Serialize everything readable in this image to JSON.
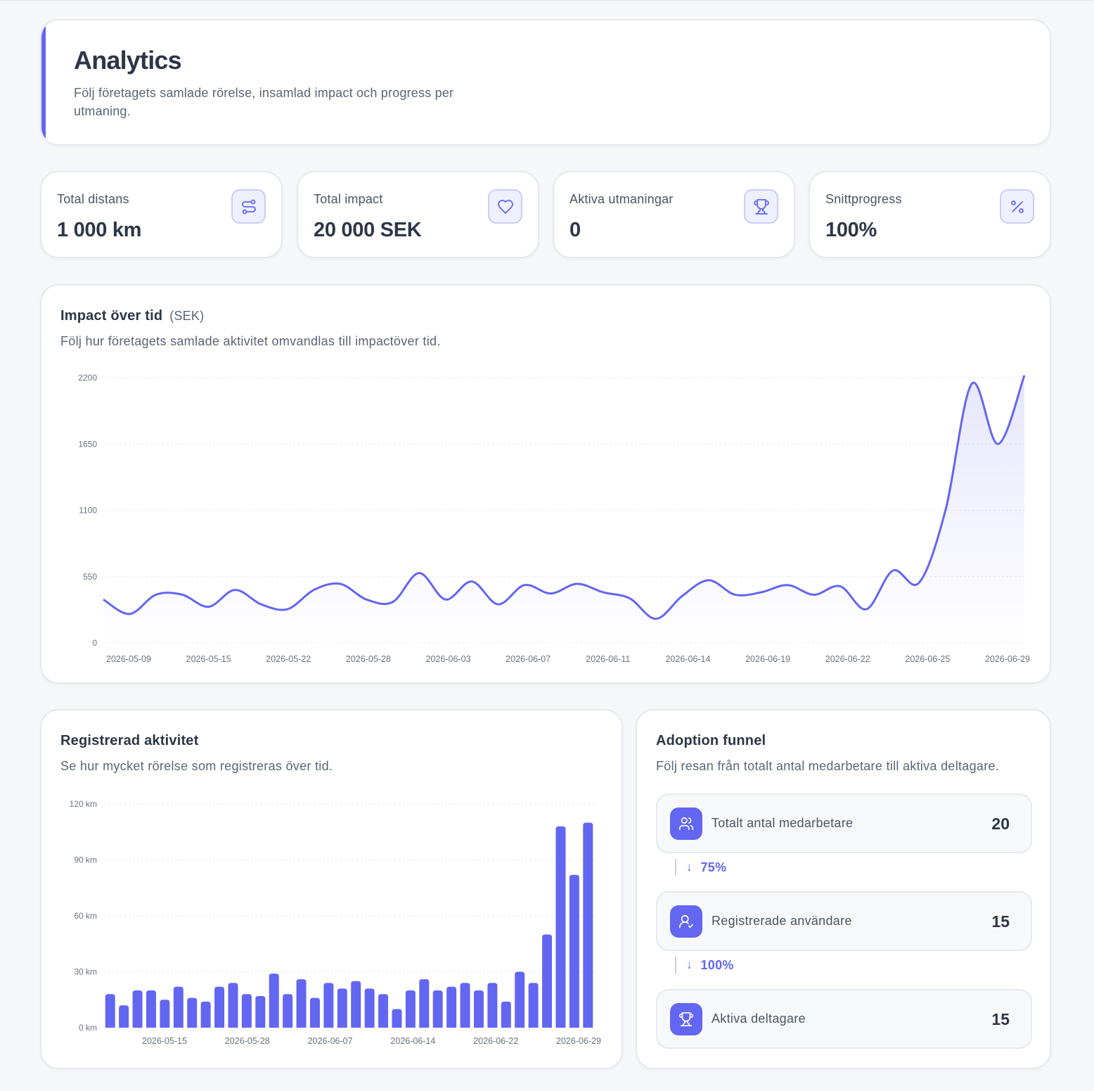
{
  "header": {
    "title": "Analytics",
    "subtitle": "Följ företagets samlade rörelse, insamlad impact och progress per utmaning."
  },
  "stats": [
    {
      "label": "Total distans",
      "value": "1 000 km",
      "icon": "route-icon"
    },
    {
      "label": "Total impact",
      "value": "20 000 SEK",
      "icon": "heart-icon"
    },
    {
      "label": "Aktiva utmaningar",
      "value": "0",
      "icon": "trophy-icon"
    },
    {
      "label": "Snittprogress",
      "value": "100%",
      "icon": "percent-icon"
    }
  ],
  "colors": {
    "accent": "#6366f1",
    "accent_light": "#eef0ff",
    "grid": "#e5e7eb",
    "text": "#2d3648"
  },
  "impact": {
    "title": "Impact över tid",
    "unit": "(SEK)",
    "subtitle": "Följ hur företagets samlade aktivitet omvandlas till impactöver tid."
  },
  "activity": {
    "title": "Registrerad aktivitet",
    "subtitle": "Se hur mycket rörelse som registreras över tid."
  },
  "funnel": {
    "title": "Adoption funnel",
    "subtitle": "Följ resan från totalt antal medarbetare till aktiva deltagare.",
    "steps": [
      {
        "label": "Totalt antal medarbetare",
        "value": "20",
        "icon": "users-icon"
      },
      {
        "label": "Registrerade användare",
        "value": "15",
        "icon": "user-check-icon"
      },
      {
        "label": "Aktiva deltagare",
        "value": "15",
        "icon": "trophy-icon"
      }
    ],
    "conversions": [
      "75%",
      "100%"
    ]
  },
  "chart_data": [
    {
      "type": "area",
      "title": "Impact över tid",
      "ylim": [
        0,
        2200
      ],
      "y_ticks": [
        "0",
        "550",
        "1100",
        "1650",
        "2200"
      ],
      "x_tick_labels": [
        "2026-05-09",
        "2026-05-15",
        "2026-05-22",
        "2026-05-28",
        "2026-06-03",
        "2026-06-07",
        "2026-06-11",
        "2026-06-14",
        "2026-06-19",
        "2026-06-22",
        "2026-06-25",
        "2026-06-29"
      ],
      "grid": true,
      "series": [
        {
          "values": [
            360,
            240,
            400,
            400,
            300,
            440,
            320,
            280,
            440,
            490,
            360,
            340,
            580,
            360,
            510,
            320,
            480,
            410,
            490,
            420,
            370,
            200,
            390,
            520,
            400,
            420,
            480,
            400,
            470,
            280,
            600,
            500,
            1100,
            2150,
            1650,
            2220
          ]
        }
      ]
    },
    {
      "type": "bar",
      "title": "Registrerad aktivitet",
      "ylim": [
        0,
        120
      ],
      "y_ticks": [
        "0 km",
        "30 km",
        "60 km",
        "90 km",
        "120 km"
      ],
      "x_tick_labels": [
        "2026-05-15",
        "2026-05-28",
        "2026-06-07",
        "2026-06-14",
        "2026-06-22",
        "2026-06-29"
      ],
      "grid": true,
      "values": [
        18,
        12,
        20,
        20,
        15,
        22,
        16,
        14,
        22,
        24,
        18,
        17,
        29,
        18,
        26,
        16,
        24,
        21,
        25,
        21,
        18,
        10,
        20,
        26,
        20,
        22,
        24,
        20,
        24,
        14,
        30,
        24,
        50,
        108,
        82,
        110
      ]
    }
  ]
}
